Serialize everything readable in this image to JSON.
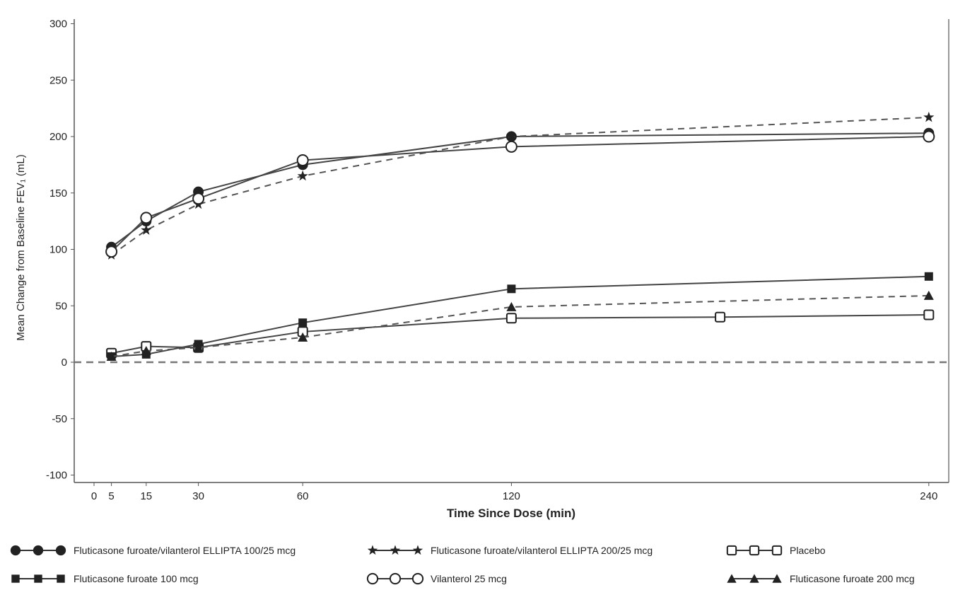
{
  "chart_data": {
    "type": "line",
    "title": "",
    "xlabel": "Time Since Dose (min)",
    "ylabel": "Mean Change from Baseline FEV₁ (mL)",
    "xlim": [
      -5,
      245
    ],
    "ylim": [
      -105,
      305
    ],
    "xticks": [
      0,
      5,
      15,
      30,
      60,
      120,
      240
    ],
    "yticks": [
      -100,
      -50,
      0,
      50,
      100,
      150,
      200,
      250,
      300
    ],
    "reference_line": 0,
    "legend_position": "bottom",
    "series": [
      {
        "name": "Fluticasone furoate/vilanterol ELLIPTA 100/25 mcg",
        "marker": "circle-filled",
        "dashed": false,
        "x": [
          5,
          15,
          30,
          60,
          120,
          240
        ],
        "values": [
          102,
          125,
          151,
          175,
          200,
          203
        ]
      },
      {
        "name": "Fluticasone furoate/vilanterol ELLIPTA 200/25 mcg",
        "marker": "star",
        "dashed": true,
        "x": [
          5,
          15,
          30,
          60,
          120,
          240
        ],
        "values": [
          95,
          117,
          140,
          165,
          200,
          217
        ]
      },
      {
        "name": "Placebo",
        "marker": "square-open",
        "dashed": false,
        "x": [
          5,
          15,
          30,
          60,
          120,
          180,
          240
        ],
        "values": [
          8,
          14,
          13,
          27,
          39,
          40,
          42
        ]
      },
      {
        "name": "Fluticasone furoate 100 mcg",
        "marker": "square-filled",
        "dashed": false,
        "x": [
          5,
          15,
          30,
          60,
          120,
          240
        ],
        "values": [
          5,
          7,
          16,
          35,
          65,
          76
        ]
      },
      {
        "name": "Vilanterol 25 mcg",
        "marker": "circle-open",
        "dashed": false,
        "x": [
          5,
          15,
          30,
          60,
          120,
          240
        ],
        "values": [
          98,
          128,
          145,
          179,
          191,
          200
        ]
      },
      {
        "name": "Fluticasone furoate 200 mcg",
        "marker": "triangle",
        "dashed": true,
        "x": [
          5,
          15,
          30,
          60,
          120,
          240
        ],
        "values": [
          5,
          10,
          13,
          22,
          49,
          59
        ]
      }
    ]
  }
}
